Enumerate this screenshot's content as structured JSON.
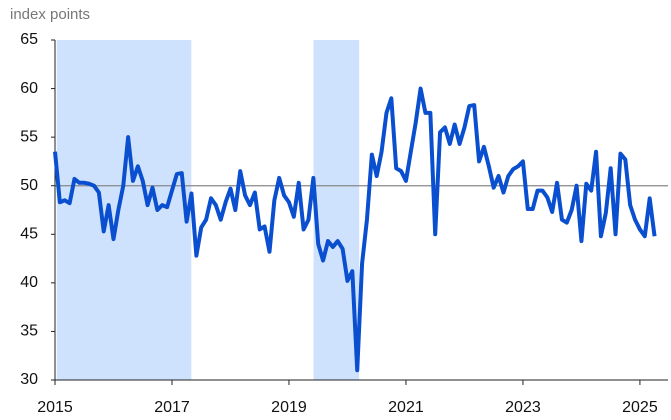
{
  "chart_data": {
    "type": "line",
    "y_axis_label": "index points",
    "x": [
      2015,
      2015.083,
      2015.167,
      2015.25,
      2015.333,
      2015.417,
      2015.5,
      2015.583,
      2015.667,
      2015.75,
      2015.833,
      2015.917,
      2016,
      2016.083,
      2016.167,
      2016.25,
      2016.333,
      2016.417,
      2016.5,
      2016.583,
      2016.667,
      2016.75,
      2016.833,
      2016.917,
      2017,
      2017.083,
      2017.167,
      2017.25,
      2017.333,
      2017.417,
      2017.5,
      2017.583,
      2017.667,
      2017.75,
      2017.833,
      2017.917,
      2018,
      2018.083,
      2018.167,
      2018.25,
      2018.333,
      2018.417,
      2018.5,
      2018.583,
      2018.667,
      2018.75,
      2018.833,
      2018.917,
      2019,
      2019.083,
      2019.167,
      2019.25,
      2019.333,
      2019.417,
      2019.5,
      2019.583,
      2019.667,
      2019.75,
      2019.833,
      2019.917,
      2020,
      2020.083,
      2020.167,
      2020.25,
      2020.333,
      2020.417,
      2020.5,
      2020.583,
      2020.667,
      2020.75,
      2020.833,
      2020.917,
      2021,
      2021.083,
      2021.167,
      2021.25,
      2021.333,
      2021.417,
      2021.5,
      2021.583,
      2021.667,
      2021.75,
      2021.833,
      2021.917,
      2022,
      2022.083,
      2022.167,
      2022.25,
      2022.333,
      2022.417,
      2022.5,
      2022.583,
      2022.667,
      2022.75,
      2022.833,
      2022.917,
      2023,
      2023.083,
      2023.167,
      2023.25,
      2023.333,
      2023.417,
      2023.5,
      2023.583,
      2023.667,
      2023.75,
      2023.833,
      2023.917,
      2024,
      2024.083,
      2024.167,
      2024.25,
      2024.333,
      2024.417,
      2024.5,
      2024.583,
      2024.667,
      2024.75,
      2024.833,
      2024.917,
      2025,
      2025.083,
      2025.167,
      2025.25
    ],
    "series": [
      {
        "color": "#0a4fcf",
        "values": [
          53.5,
          48.3,
          48.5,
          48.2,
          50.7,
          50.3,
          50.3,
          50.2,
          50.0,
          49.3,
          45.3,
          48.0,
          44.5,
          47.5,
          50.0,
          55.0,
          50.5,
          52.0,
          50.5,
          48.0,
          49.8,
          47.5,
          48.0,
          47.8,
          49.5,
          51.2,
          51.3,
          46.3,
          49.2,
          42.8,
          45.7,
          46.5,
          48.7,
          48.0,
          46.5,
          48.3,
          49.7,
          47.5,
          51.5,
          49.0,
          48.0,
          49.3,
          45.5,
          45.8,
          43.2,
          48.5,
          50.8,
          49.0,
          48.3,
          46.8,
          50.3,
          45.5,
          46.5,
          50.8,
          44.0,
          42.3,
          44.3,
          43.7,
          44.3,
          43.5,
          40.2,
          41.2,
          31.0,
          42.0,
          46.5,
          53.2,
          51.0,
          53.5,
          57.5,
          59.0,
          51.8,
          51.5,
          50.5,
          53.5,
          56.5,
          60.0,
          57.5,
          57.5,
          45.0,
          55.5,
          56.0,
          54.3,
          56.3,
          54.3,
          56.0,
          58.2,
          58.3,
          52.5,
          54.0,
          52.0,
          49.8,
          51.0,
          49.3,
          51.0,
          51.7,
          52.0,
          52.5,
          47.6,
          47.6,
          49.5,
          49.5,
          48.8,
          47.3,
          50.3,
          46.5,
          46.2,
          47.5,
          50.0,
          44.3,
          50.2,
          49.5,
          53.5,
          44.8,
          47.2,
          51.8,
          45.0,
          53.3,
          52.7,
          48.0,
          46.5,
          45.5,
          44.8,
          48.7,
          44.8
        ]
      }
    ],
    "shaded_periods": [
      [
        2015.03,
        2017.33
      ],
      [
        2019.42,
        2020.2
      ]
    ],
    "shade_color": "#cfe2fd",
    "reference_line": 50,
    "xlim": [
      2015,
      2025.48
    ],
    "xticks": [
      2015,
      2017,
      2019,
      2021,
      2023,
      2025
    ],
    "ylim": [
      30,
      65
    ],
    "yticks": [
      30,
      35,
      40,
      45,
      50,
      55,
      60,
      65
    ]
  }
}
